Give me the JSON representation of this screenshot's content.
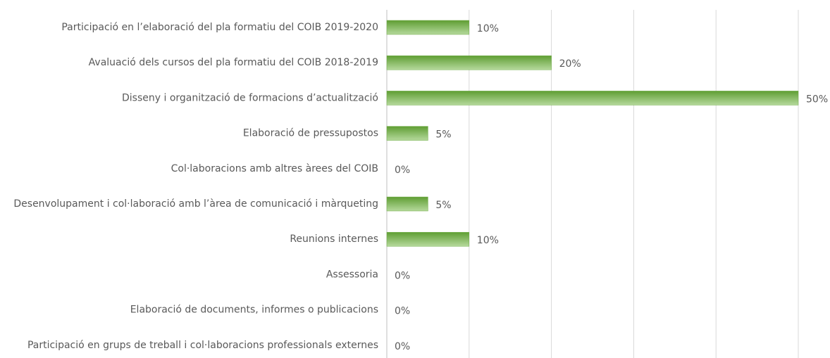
{
  "chart_data": {
    "type": "hbar",
    "categories": [
      "Participació en l’elaboració del pla formatiu del COIB 2019-2020",
      "Avaluació dels cursos del pla formatiu del COIB 2018-2019",
      "Disseny i organització de formacions d’actualització",
      "Elaboració de pressupostos",
      "Col·laboracions amb altres àrees del COIB",
      "Desenvolupament i col·laboració amb l’àrea de comunicació i màrqueting",
      "Reunions internes",
      "Assessoria",
      "Elaboració de documents, informes o publicacions",
      "Participació en grups de treball i col·laboracions professionals externes"
    ],
    "values": [
      10,
      20,
      50,
      5,
      0,
      5,
      10,
      0,
      0,
      0
    ],
    "value_labels": [
      "10%",
      "20%",
      "50%",
      "5%",
      "0%",
      "5%",
      "10%",
      "0%",
      "0%",
      "0%"
    ],
    "color": "#70ad47",
    "xlim": [
      0,
      50
    ],
    "xticks": [
      0,
      10,
      20,
      30,
      40,
      50
    ],
    "grid": true
  }
}
